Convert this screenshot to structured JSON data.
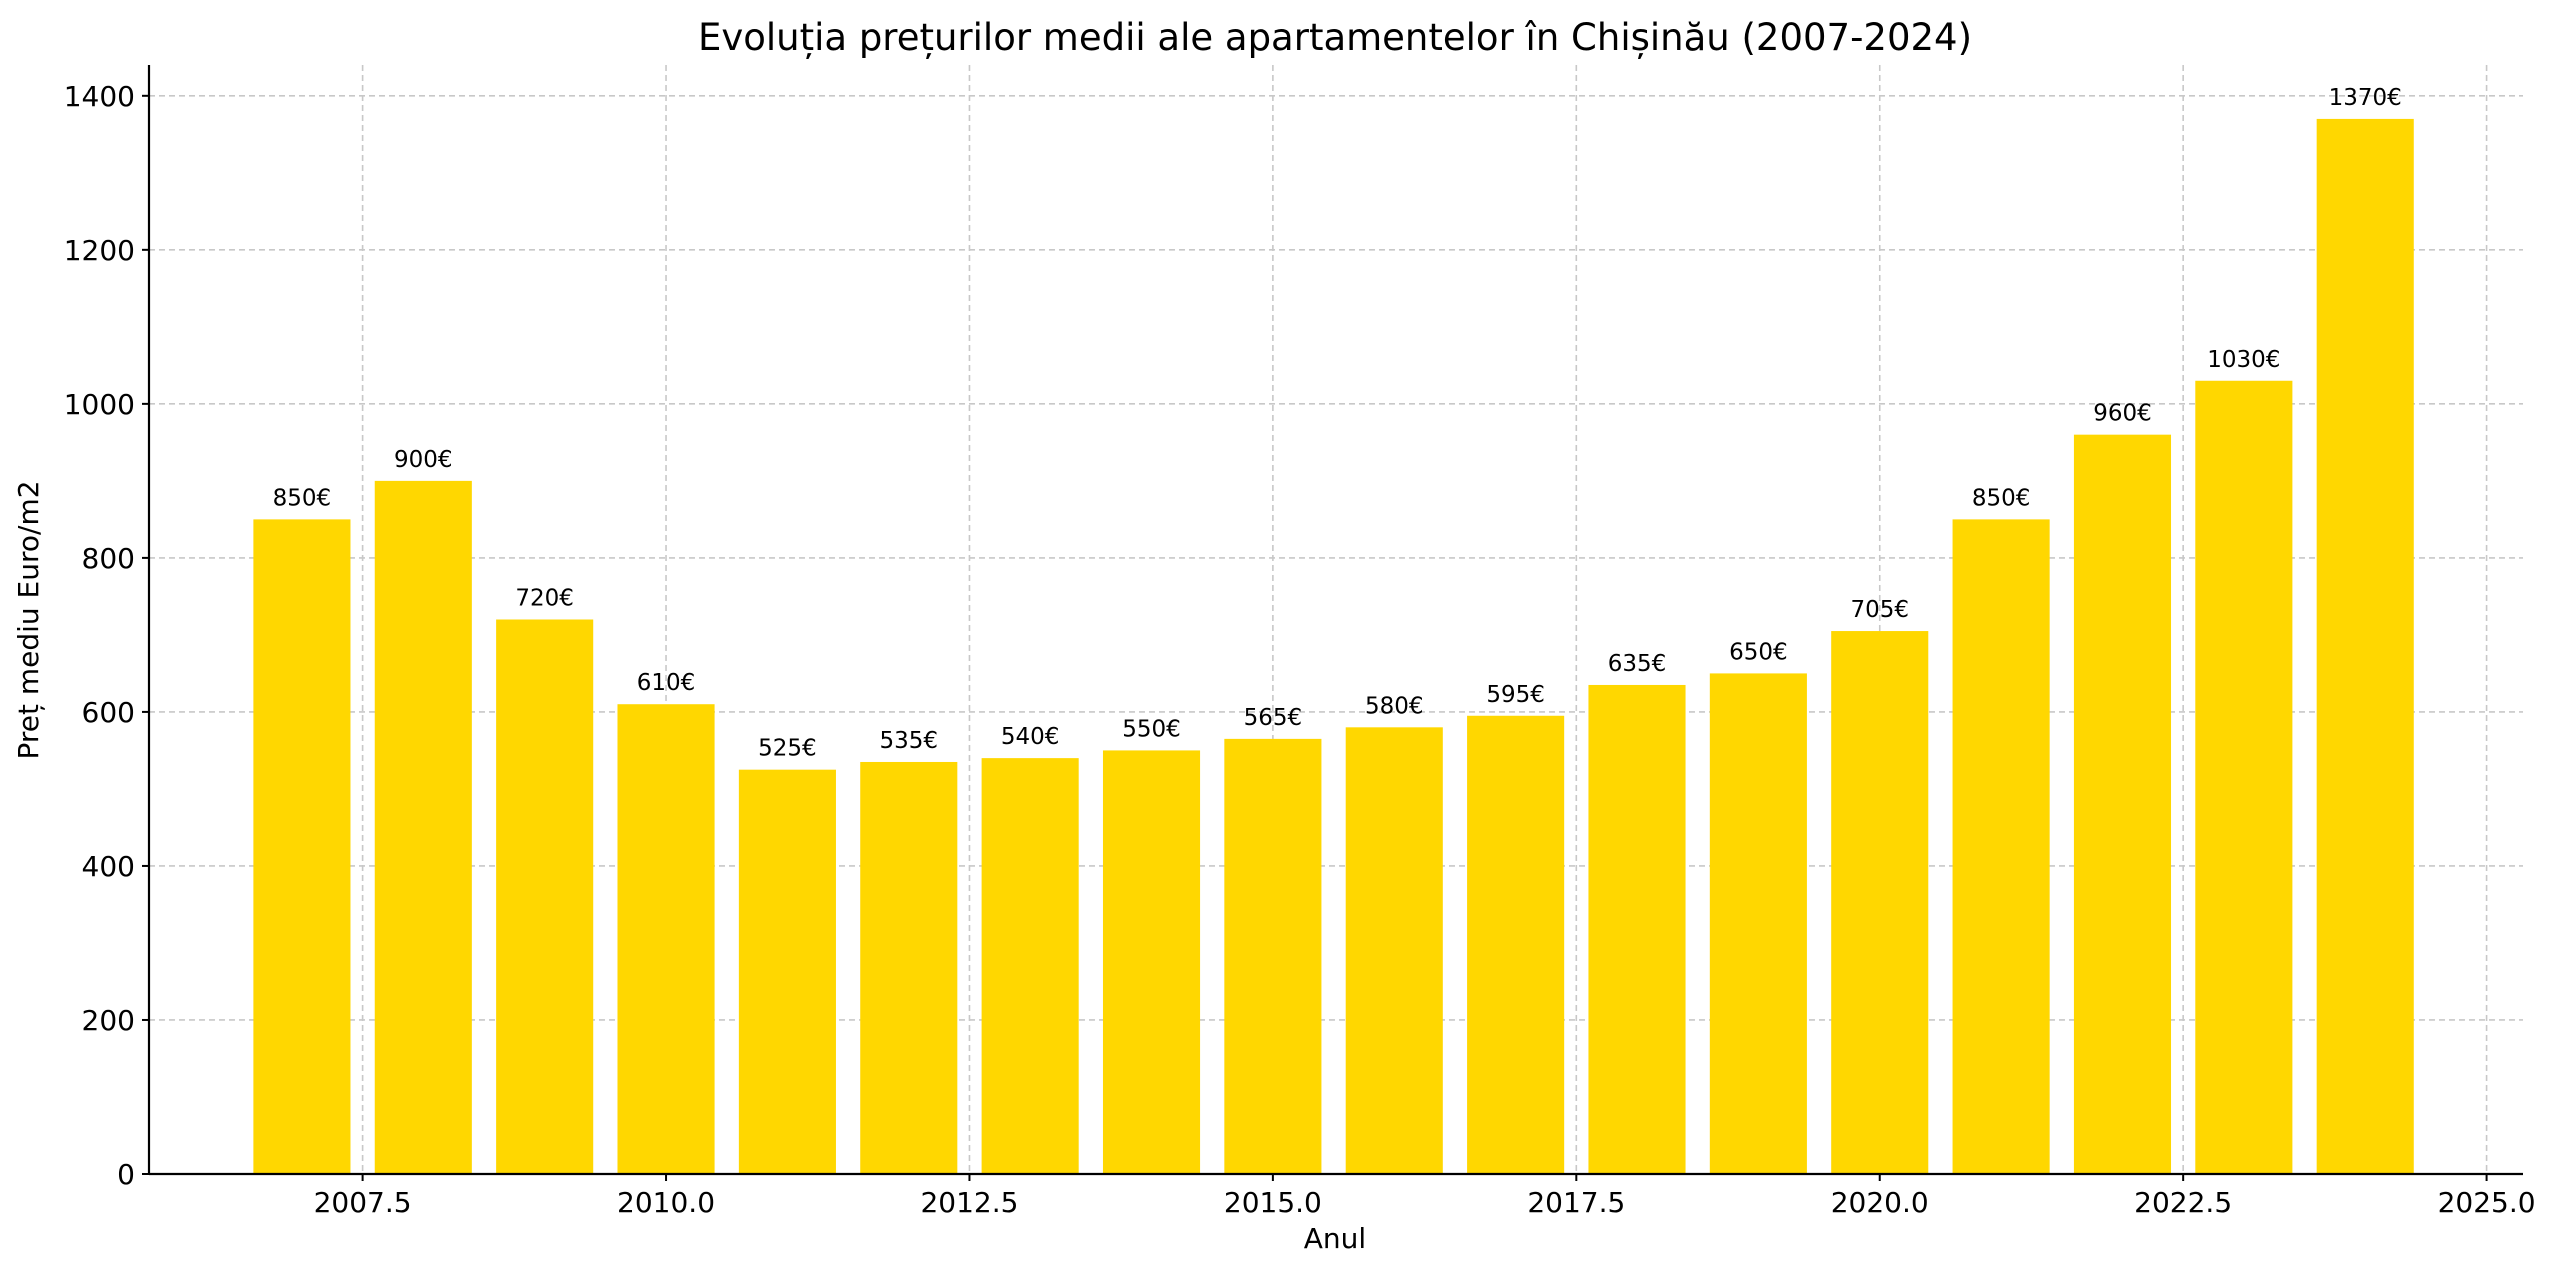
{
  "chart_data": {
    "type": "bar",
    "title": "Evoluția prețurilor medii ale apartamentelor în Chișinău (2007-2024)",
    "xlabel": "Anul",
    "ylabel": "Preț mediu Euro/m2",
    "x": [
      2007,
      2008,
      2009,
      2010,
      2011,
      2012,
      2013,
      2014,
      2015,
      2016,
      2017,
      2018,
      2019,
      2020,
      2021,
      2022,
      2023,
      2024
    ],
    "values": [
      850,
      900,
      720,
      610,
      525,
      535,
      540,
      550,
      565,
      580,
      595,
      635,
      650,
      705,
      850,
      960,
      1030,
      1370
    ],
    "data_labels": [
      "850€",
      "900€",
      "720€",
      "610€",
      "525€",
      "535€",
      "540€",
      "550€",
      "565€",
      "580€",
      "595€",
      "635€",
      "650€",
      "705€",
      "850€",
      "960€",
      "1030€",
      "1370€"
    ],
    "xticks": [
      2007.5,
      2010.0,
      2012.5,
      2015.0,
      2017.5,
      2020.0,
      2022.5,
      2025.0
    ],
    "xtick_labels": [
      "2007.5",
      "2010.0",
      "2012.5",
      "2015.0",
      "2017.5",
      "2020.0",
      "2022.5",
      "2025.0"
    ],
    "yticks": [
      0,
      200,
      400,
      600,
      800,
      1000,
      1200,
      1400
    ],
    "ytick_labels": [
      "0",
      "200",
      "400",
      "600",
      "800",
      "1000",
      "1200",
      "1400"
    ],
    "xlim": [
      2005.74,
      2025.3
    ],
    "ylim": [
      0,
      1440
    ],
    "bar_width": 0.8,
    "grid": true,
    "color": "#FFD700"
  }
}
